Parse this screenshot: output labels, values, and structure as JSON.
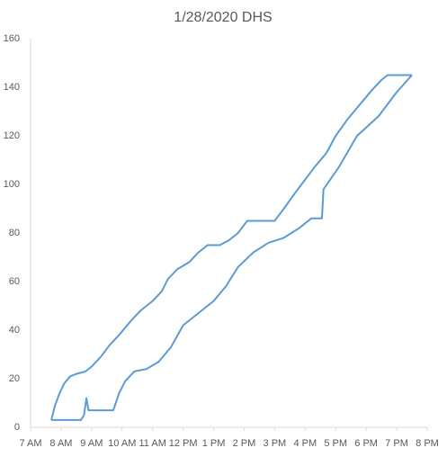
{
  "chart_data": {
    "type": "line",
    "title": "1/28/2020 DHS",
    "xlim": [
      7,
      20
    ],
    "xticks": [
      {
        "value": 7,
        "label": "7 AM"
      },
      {
        "value": 8,
        "label": "8 AM"
      },
      {
        "value": 9,
        "label": "9 AM"
      },
      {
        "value": 10,
        "label": "10 AM"
      },
      {
        "value": 11,
        "label": "11 AM"
      },
      {
        "value": 12,
        "label": "12 PM"
      },
      {
        "value": 13,
        "label": "1 PM"
      },
      {
        "value": 14,
        "label": "2 PM"
      },
      {
        "value": 15,
        "label": "3 PM"
      },
      {
        "value": 16,
        "label": "4 PM"
      },
      {
        "value": 17,
        "label": "5 PM"
      },
      {
        "value": 18,
        "label": "6 PM"
      },
      {
        "value": 19,
        "label": "7 PM"
      },
      {
        "value": 20,
        "label": "8 PM"
      }
    ],
    "ylim": [
      0,
      160
    ],
    "yticks": [
      0,
      20,
      40,
      60,
      80,
      100,
      120,
      140,
      160
    ],
    "grid": false,
    "series": [
      {
        "color": "#5b9bd5",
        "x": [
          7.68,
          7.8,
          7.95,
          8.1,
          8.3,
          8.5,
          8.8,
          9.0,
          9.3,
          9.6,
          9.9,
          10.1,
          10.3,
          10.6,
          11.0,
          11.3,
          11.5,
          11.8,
          12.2,
          12.5,
          12.8,
          13.2,
          13.5,
          13.8,
          14.1,
          15.0,
          15.3,
          15.7,
          16.0,
          16.3,
          16.7,
          17.0,
          17.4,
          17.8,
          18.2,
          18.5,
          18.7,
          19.5
        ],
        "values": [
          3,
          9,
          14,
          18,
          21,
          22,
          23,
          25,
          29,
          34,
          38,
          41,
          44,
          48,
          52,
          56,
          61,
          65,
          68,
          72,
          75,
          75,
          77,
          80,
          85,
          85,
          90,
          97,
          102,
          107,
          113,
          120,
          127,
          133,
          139,
          143,
          145,
          145
        ]
      },
      {
        "color": "#5b9bd5",
        "x": [
          7.68,
          8.65,
          8.75,
          8.83,
          8.9,
          9.71,
          9.9,
          10.1,
          10.4,
          10.8,
          11.2,
          11.6,
          12.0,
          12.5,
          13.0,
          13.4,
          13.8,
          14.3,
          14.8,
          15.3,
          15.8,
          16.2,
          16.55,
          16.6,
          17.1,
          17.7,
          18.4,
          19.0,
          19.5
        ],
        "values": [
          3,
          3,
          5,
          12,
          7,
          7,
          14,
          19,
          23,
          24,
          27,
          33,
          42,
          47,
          52,
          58,
          66,
          72,
          76,
          78,
          82,
          86,
          86,
          98,
          107,
          120,
          128,
          138,
          145
        ]
      }
    ]
  }
}
